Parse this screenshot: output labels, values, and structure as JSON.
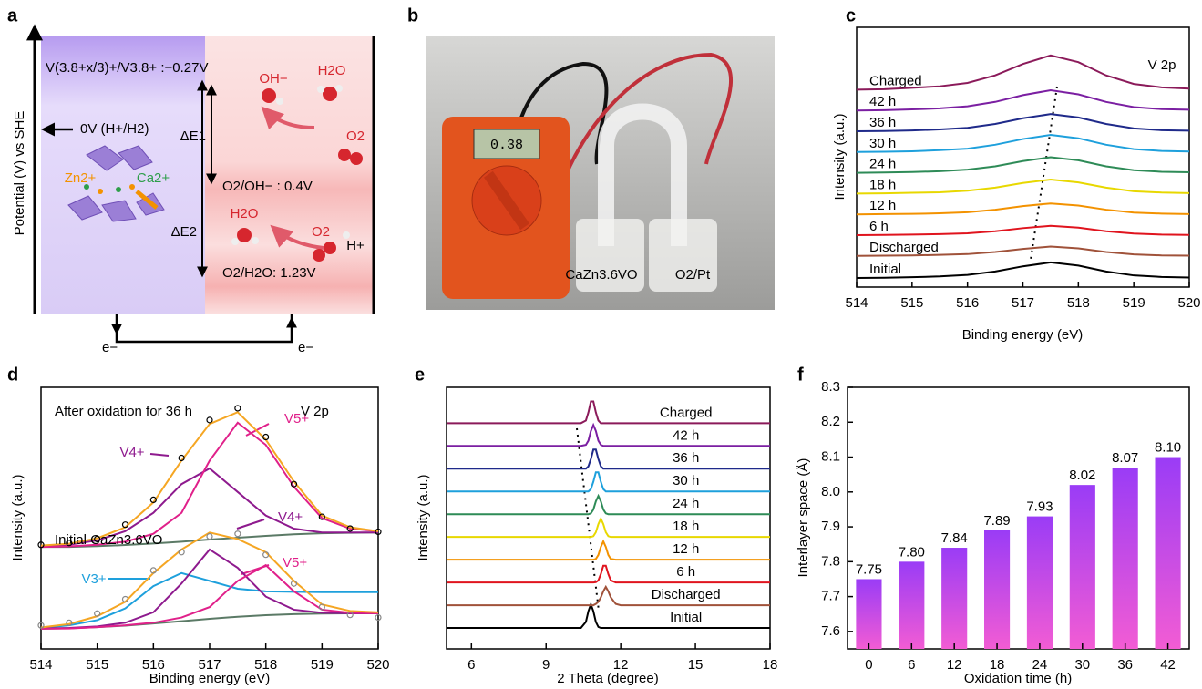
{
  "diagram": {
    "label": "a",
    "y_axis": "Potential (V) vs SHE",
    "levels": [
      "V(3.8+x/3)+/V3.8+ :−0.27V",
      "0V (H+/H2)",
      "O2/OH− : 0.4V",
      "O2/H2O: 1.23V"
    ],
    "deltas": [
      "ΔE1",
      "ΔE2"
    ],
    "species": [
      "OH−",
      "H2O",
      "O2",
      "H2O",
      "O2",
      "H+",
      "Zn2+",
      "Ca2+"
    ],
    "electrons": [
      "e−",
      "e−"
    ]
  },
  "photo": {
    "label": "b",
    "display": "0.38",
    "labels": [
      "CaZn3.6VO",
      "O2/Pt"
    ]
  },
  "chart_data": [
    {
      "type": "line",
      "label": "c",
      "xlabel": "Binding energy (eV)",
      "ylabel": "Intensity (a.u.)",
      "annotations": [
        {
          "text": "V 2p",
          "color": "#000000"
        }
      ],
      "x": [
        514,
        514.5,
        515,
        515.5,
        516,
        516.5,
        517,
        517.5,
        518,
        518.5,
        519,
        519.5,
        520
      ],
      "xlim": [
        514,
        520
      ],
      "xticks": [
        514,
        515,
        516,
        517,
        518,
        519,
        520
      ],
      "ylim": [
        0,
        100
      ],
      "series": [
        {
          "name": "Initial",
          "color": "#000000",
          "values": [
            3.5,
            3.6,
            3.8,
            4.1,
            4.7,
            6,
            8,
            9.5,
            8.3,
            6,
            4.5,
            3.9,
            3.7
          ]
        },
        {
          "name": "Discharged",
          "color": "#a0523a",
          "values": [
            12,
            12.1,
            12.2,
            12.4,
            12.7,
            13.5,
            14.7,
            15.6,
            14.9,
            13.5,
            12.6,
            12.2,
            12.1
          ]
        },
        {
          "name": "6 h",
          "color": "#e0141e",
          "values": [
            20,
            20.1,
            20.2,
            20.4,
            20.7,
            21.5,
            22.7,
            23.6,
            22.9,
            21.5,
            20.6,
            20.2,
            20.1
          ]
        },
        {
          "name": "12 h",
          "color": "#f39200",
          "values": [
            28,
            28.1,
            28.2,
            28.4,
            28.8,
            29.8,
            31.2,
            32.2,
            31.4,
            29.8,
            28.7,
            28.3,
            28.1
          ]
        },
        {
          "name": "18 h",
          "color": "#e8d800",
          "values": [
            36,
            36.1,
            36.3,
            36.5,
            37.1,
            38.3,
            40.1,
            41.4,
            40.3,
            38.3,
            36.9,
            36.4,
            36.2
          ]
        },
        {
          "name": "24 h",
          "color": "#2e8b57",
          "values": [
            44,
            44.1,
            44.3,
            44.6,
            45.2,
            46.5,
            48.5,
            50,
            48.8,
            46.5,
            45,
            44.4,
            44.2
          ]
        },
        {
          "name": "30 h",
          "color": "#1ea0dc",
          "values": [
            52,
            52.1,
            52.3,
            52.7,
            53.3,
            54.8,
            57,
            58.6,
            57.3,
            54.8,
            53.1,
            52.4,
            52.2
          ]
        },
        {
          "name": "36 h",
          "color": "#1f2a8a",
          "values": [
            60,
            60.1,
            60.3,
            60.7,
            61.3,
            62.8,
            65,
            66.6,
            65.3,
            62.8,
            61.1,
            60.4,
            60.2
          ]
        },
        {
          "name": "42 h",
          "color": "#7b1fa2",
          "values": [
            68,
            68.1,
            68.4,
            68.8,
            69.6,
            71.3,
            73.9,
            75.8,
            74.2,
            71.3,
            69.3,
            68.5,
            68.3
          ]
        },
        {
          "name": "Charged",
          "color": "#8b1a5a",
          "values": [
            76,
            76.2,
            76.7,
            77.3,
            78.6,
            81.5,
            85.9,
            89.2,
            86.6,
            81.5,
            78.2,
            76.9,
            76.4
          ]
        }
      ]
    },
    {
      "type": "line",
      "label": "d",
      "xlabel": "Binding energy (eV)",
      "ylabel": "Intensity (a.u.)",
      "annotations": [
        {
          "text": "After oxidation for 36 h",
          "color": "#000000"
        },
        {
          "text": "V 2p",
          "color": "#000000"
        },
        {
          "text": "V5+",
          "color": "#e0208a"
        },
        {
          "text": "V4+",
          "color": "#8e1a8e"
        },
        {
          "text": "Initial CaZn3.6VO",
          "color": "#000000"
        },
        {
          "text": "V4+",
          "color": "#8e1a8e"
        },
        {
          "text": "V5+",
          "color": "#e0208a"
        },
        {
          "text": "V3+",
          "color": "#1ea0dc"
        }
      ],
      "x": [
        514,
        514.5,
        515,
        515.5,
        516,
        516.5,
        517,
        517.5,
        518,
        518.5,
        519,
        519.5,
        520
      ],
      "xlim": [
        514,
        520
      ],
      "xticks": [
        514,
        515,
        516,
        517,
        518,
        519,
        520
      ],
      "ylim": [
        0,
        100
      ],
      "series": [
        {
          "color": "#5b7a66",
          "values": [
            39,
            39,
            39.3,
            39.7,
            40.3,
            41,
            41.8,
            42.5,
            43.2,
            43.8,
            44.2,
            44.4,
            44.5
          ]
        },
        {
          "color": "#8e1a8e",
          "values": [
            39.2,
            39.8,
            41.5,
            45,
            52,
            63,
            69,
            60,
            51,
            46,
            44.5,
            44.5,
            44.5
          ]
        },
        {
          "color": "#e0208a",
          "values": [
            39,
            39.2,
            39.8,
            41,
            44,
            52,
            72,
            86.5,
            78,
            62,
            50,
            46,
            45
          ]
        },
        {
          "color": "#f5a623",
          "values": [
            39.5,
            40.2,
            42.3,
            46.5,
            56,
            72,
            86,
            90.5,
            80,
            64,
            51,
            46.5,
            45
          ]
        },
        {
          "color": "#000000",
          "marker": "circle",
          "values": [
            39.8,
            40.5,
            42,
            47.5,
            57,
            73,
            87.5,
            92,
            81,
            63,
            50.5,
            46,
            44.8
          ]
        },
        {
          "color": "#5b7a66",
          "values": [
            7.7,
            7.9,
            8.3,
            8.9,
            9.7,
            10.6,
            11.5,
            12.3,
            12.9,
            13.3,
            13.5,
            13.6,
            13.6
          ]
        },
        {
          "color": "#1ea0dc",
          "values": [
            8,
            9,
            11,
            15.5,
            24,
            29,
            26,
            23,
            22,
            21.8,
            21.7,
            21.7,
            21.7
          ]
        },
        {
          "color": "#8e1a8e",
          "values": [
            7.8,
            8,
            8.6,
            10,
            14,
            25,
            38,
            31,
            20,
            15,
            13.8,
            13.6,
            13.6
          ]
        },
        {
          "color": "#e0208a",
          "values": [
            7.7,
            7.8,
            8.3,
            9,
            10,
            12,
            16,
            26,
            32,
            22,
            15,
            13.8,
            13.6
          ]
        },
        {
          "color": "#f5a623",
          "values": [
            8.2,
            9.5,
            12.5,
            18,
            29,
            38,
            44.5,
            42,
            37,
            26,
            17,
            14.5,
            14
          ]
        },
        {
          "color": "#888888",
          "marker": "circle",
          "values": [
            9,
            10,
            13.5,
            19,
            30,
            37,
            43,
            44,
            36,
            25,
            16,
            13,
            12
          ]
        }
      ]
    },
    {
      "type": "line",
      "label": "e",
      "xlabel": "2 Theta (degree)",
      "ylabel": "Intensity (a.u.)",
      "x": [
        5,
        6,
        7,
        8,
        9,
        10,
        10.4,
        10.6,
        10.7,
        10.8,
        10.9,
        11,
        11.1,
        11.2,
        11.3,
        11.4,
        11.5,
        11.6,
        11.8,
        12,
        13,
        14,
        15,
        16,
        17,
        18
      ],
      "xlim": [
        5,
        18
      ],
      "xticks": [
        6,
        9,
        12,
        15,
        18
      ],
      "ylim": [
        0,
        100
      ],
      "series": [
        {
          "name": "Initial",
          "color": "#000000",
          "values": [
            8,
            8,
            8,
            8,
            8,
            8,
            8,
            10.3,
            14.4,
            17,
            14.4,
            10.3,
            8.4,
            8,
            8,
            8,
            8,
            8,
            8,
            8,
            8,
            8,
            8,
            8,
            8,
            8
          ]
        },
        {
          "name": "Discharged",
          "color": "#a0523a",
          "values": [
            16.7,
            16.7,
            16.7,
            16.7,
            16.7,
            16.7,
            16.7,
            16.7,
            16.7,
            16.7,
            16.7,
            17.2,
            18,
            19.7,
            22,
            23.7,
            22,
            19.7,
            17.2,
            16.7,
            16.7,
            16.7,
            16.7,
            16.7,
            16.7,
            16.7
          ]
        },
        {
          "name": "6 h",
          "color": "#e0141e",
          "values": [
            25.4,
            25.4,
            25.4,
            25.4,
            25.4,
            25.4,
            25.4,
            25.4,
            25.4,
            25.4,
            25.4,
            25.5,
            26.2,
            28.6,
            31.8,
            31.8,
            28.6,
            26.2,
            25.4,
            25.4,
            25.4,
            25.4,
            25.4,
            25.4,
            25.4,
            25.4
          ]
        },
        {
          "name": "12 h",
          "color": "#f39200",
          "values": [
            34.1,
            34.1,
            34.1,
            34.1,
            34.1,
            34.1,
            34.1,
            34.1,
            34.1,
            34.1,
            34.1,
            34.4,
            35.9,
            39,
            41.1,
            39,
            35.9,
            34.4,
            34.1,
            34.1,
            34.1,
            34.1,
            34.1,
            34.1,
            34.1,
            34.1
          ]
        },
        {
          "name": "18 h",
          "color": "#e8d800",
          "values": [
            42.8,
            42.8,
            42.8,
            42.8,
            42.8,
            42.8,
            42.8,
            42.8,
            42.8,
            42.8,
            43.1,
            44.6,
            47.7,
            49.8,
            47.7,
            44.6,
            43.1,
            42.8,
            42.8,
            42.8,
            42.8,
            42.8,
            42.8,
            42.8,
            42.8,
            42.8
          ]
        },
        {
          "name": "24 h",
          "color": "#2e8b57",
          "values": [
            51.5,
            51.5,
            51.5,
            51.5,
            51.5,
            51.5,
            51.5,
            51.5,
            51.5,
            51.8,
            53.3,
            56.4,
            58.5,
            56.4,
            53.3,
            51.8,
            51.5,
            51.5,
            51.5,
            51.5,
            51.5,
            51.5,
            51.5,
            51.5,
            51.5,
            51.5
          ]
        },
        {
          "name": "30 h",
          "color": "#1ea0dc",
          "values": [
            60.2,
            60.2,
            60.2,
            60.2,
            60.2,
            60.2,
            60.2,
            60.2,
            60.2,
            61.1,
            63.9,
            67.5,
            67.5,
            63.9,
            61.1,
            60.2,
            60.2,
            60.2,
            60.2,
            60.2,
            60.2,
            60.2,
            60.2,
            60.2,
            60.2,
            60.2
          ]
        },
        {
          "name": "36 h",
          "color": "#1f2a8a",
          "values": [
            68.9,
            68.9,
            68.9,
            68.9,
            68.9,
            68.9,
            68.9,
            68.9,
            69.8,
            72.6,
            76.2,
            76.2,
            72.6,
            69.8,
            68.9,
            68.9,
            68.9,
            68.9,
            68.9,
            68.9,
            68.9,
            68.9,
            68.9,
            68.9,
            68.9,
            68.9
          ]
        },
        {
          "name": "42 h",
          "color": "#7b1fa2",
          "values": [
            77.6,
            77.6,
            77.6,
            77.6,
            77.6,
            77.6,
            77.6,
            78,
            79.6,
            83.3,
            85.6,
            83.3,
            79.6,
            78,
            77.6,
            77.6,
            77.6,
            77.6,
            77.6,
            77.6,
            77.6,
            77.6,
            77.6,
            77.6,
            77.6,
            77.6
          ]
        },
        {
          "name": "Charged",
          "color": "#8b1a5a",
          "values": [
            86.3,
            86.3,
            86.3,
            86.3,
            86.3,
            86.3,
            86.3,
            87.3,
            90.4,
            94.6,
            94.6,
            90.4,
            87.3,
            86.3,
            86.3,
            86.3,
            86.3,
            86.3,
            86.3,
            86.3,
            86.3,
            86.3,
            86.3,
            86.3,
            86.3,
            86.3
          ]
        }
      ]
    },
    {
      "type": "bar",
      "label": "f",
      "xlabel": "Oxidation time (h)",
      "ylabel": "Interlayer space (Å)",
      "categories": [
        "0",
        "6",
        "12",
        "18",
        "24",
        "30",
        "36",
        "42"
      ],
      "values": [
        7.75,
        7.8,
        7.84,
        7.89,
        7.93,
        8.02,
        8.07,
        8.1
      ],
      "value_labels": [
        "7.75",
        "7.80",
        "7.84",
        "7.89",
        "7.93",
        "8.02",
        "8.07",
        "8.10"
      ],
      "gradient": [
        "#9a3cf6",
        "#f25cd4"
      ],
      "ylim": [
        7.55,
        8.3
      ],
      "yticks": [
        7.6,
        7.7,
        7.8,
        7.9,
        {
          "value": 8,
          "label": "8.0"
        },
        8.1,
        8.2,
        8.3
      ]
    }
  ]
}
